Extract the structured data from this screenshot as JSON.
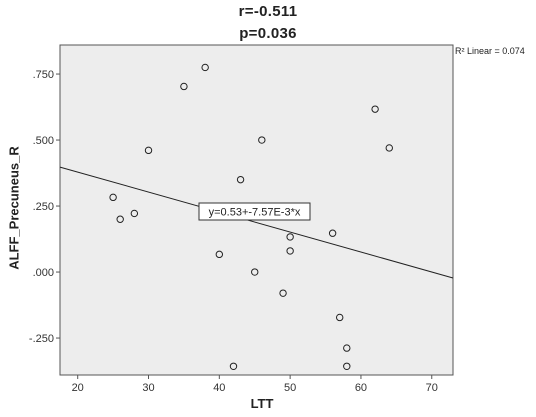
{
  "stats": {
    "r_text": "r=-0.511",
    "p_text": "p=0.036"
  },
  "fit_legend": "R² Linear = 0.074",
  "equation": "y=0.53+-7.57E-3*x",
  "chart_data": {
    "type": "scatter",
    "xlabel": "LTT",
    "ylabel": "ALFF_Precuneus_R",
    "xlim": [
      17.5,
      73
    ],
    "ylim": [
      -0.39,
      0.86
    ],
    "x_ticks": [
      20,
      30,
      40,
      50,
      60,
      70
    ],
    "x_tick_labels": [
      "20",
      "30",
      "40",
      "50",
      "60",
      "70"
    ],
    "y_ticks": [
      -0.25,
      0,
      0.25,
      0.5,
      0.75
    ],
    "y_tick_labels": [
      "-.250",
      ".000",
      ".250",
      ".500",
      ".750"
    ],
    "grid": false,
    "background": "#ededed",
    "points": [
      {
        "x": 25,
        "y": 0.283
      },
      {
        "x": 26,
        "y": 0.2
      },
      {
        "x": 28,
        "y": 0.222
      },
      {
        "x": 30,
        "y": 0.461
      },
      {
        "x": 35,
        "y": 0.703
      },
      {
        "x": 38,
        "y": 0.775
      },
      {
        "x": 40,
        "y": 0.067
      },
      {
        "x": 42,
        "y": -0.357
      },
      {
        "x": 43,
        "y": 0.35
      },
      {
        "x": 45,
        "y": 0.0
      },
      {
        "x": 46,
        "y": 0.5
      },
      {
        "x": 49,
        "y": -0.08
      },
      {
        "x": 50,
        "y": 0.133
      },
      {
        "x": 50,
        "y": 0.08
      },
      {
        "x": 56,
        "y": 0.147
      },
      {
        "x": 57,
        "y": -0.172
      },
      {
        "x": 58,
        "y": -0.288
      },
      {
        "x": 58,
        "y": -0.357
      },
      {
        "x": 62,
        "y": 0.617
      },
      {
        "x": 64,
        "y": 0.47
      }
    ],
    "fit_line": {
      "intercept": 0.53,
      "slope": -0.00757,
      "x_range": [
        17.5,
        73
      ]
    }
  }
}
